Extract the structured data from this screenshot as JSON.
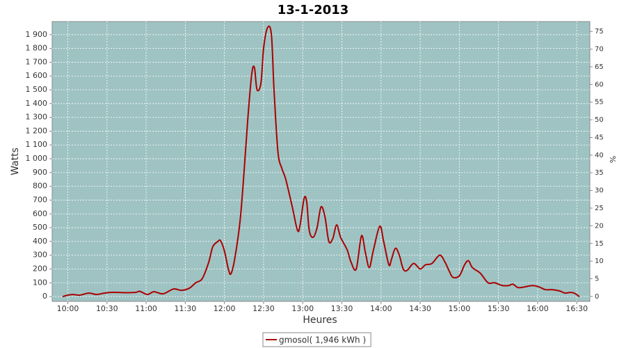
{
  "chart_data": {
    "type": "line",
    "title": "13-1-2013",
    "xlabel": "Heures",
    "ylabel": "Watts",
    "y2label": "%",
    "x": [
      "09:56",
      "10:00",
      "10:04",
      "10:09",
      "10:16",
      "10:22",
      "10:28",
      "10:33",
      "10:38",
      "10:44",
      "10:52",
      "10:55",
      "11:01",
      "11:06",
      "11:13",
      "11:21",
      "11:27",
      "11:33",
      "11:38",
      "11:43",
      "11:48",
      "11:51",
      "11:55",
      "11:57",
      "12:00",
      "12:03",
      "12:05",
      "12:08",
      "12:12",
      "12:15",
      "12:18",
      "12:21",
      "12:23",
      "12:25",
      "12:28",
      "12:30",
      "12:33",
      "12:36",
      "12:38",
      "12:41",
      "12:44",
      "12:47",
      "12:52",
      "12:56",
      "12:58",
      "13:01",
      "13:03",
      "13:05",
      "13:08",
      "13:11",
      "13:14",
      "13:17",
      "13:20",
      "13:23",
      "13:26",
      "13:29",
      "13:34",
      "13:37",
      "13:41",
      "13:45",
      "13:48",
      "13:51",
      "13:54",
      "13:59",
      "14:02",
      "14:06",
      "14:08",
      "14:11",
      "14:14",
      "14:17",
      "14:20",
      "14:25",
      "14:30",
      "14:34",
      "14:39",
      "14:45",
      "14:49",
      "14:52",
      "14:55",
      "15:00",
      "15:04",
      "15:07",
      "15:10",
      "15:16",
      "15:22",
      "15:27",
      "15:33",
      "15:38",
      "15:41",
      "15:45",
      "15:50",
      "15:56",
      "16:01",
      "16:06",
      "16:11",
      "16:17",
      "16:21",
      "16:25",
      "16:28",
      "16:32"
    ],
    "series": [
      {
        "name": "gmosol( 1,946 kWh )",
        "color": "#aa0000",
        "values": [
          0,
          10,
          15,
          10,
          25,
          15,
          25,
          30,
          30,
          28,
          30,
          38,
          15,
          35,
          20,
          55,
          45,
          60,
          100,
          130,
          250,
          360,
          400,
          405,
          330,
          200,
          165,
          280,
          550,
          900,
          1300,
          1620,
          1660,
          1500,
          1550,
          1800,
          1950,
          1900,
          1500,
          1050,
          930,
          850,
          650,
          480,
          520,
          710,
          690,
          480,
          430,
          500,
          650,
          580,
          400,
          420,
          520,
          430,
          340,
          250,
          200,
          440,
          320,
          210,
          330,
          510,
          400,
          230,
          270,
          350,
          300,
          200,
          190,
          240,
          200,
          230,
          240,
          300,
          250,
          190,
          140,
          150,
          230,
          260,
          210,
          170,
          100,
          100,
          80,
          80,
          90,
          65,
          70,
          80,
          70,
          50,
          50,
          40,
          25,
          30,
          25,
          0
        ]
      }
    ],
    "xlim": [
      "09:48",
      "16:40"
    ],
    "xticks": [
      "10:00",
      "10:30",
      "11:00",
      "11:30",
      "12:00",
      "12:30",
      "13:00",
      "13:30",
      "14:00",
      "14:30",
      "15:00",
      "15:30",
      "16:00",
      "16:30"
    ],
    "ylim": [
      -35,
      1995
    ],
    "yticks": [
      0,
      100,
      200,
      300,
      400,
      500,
      600,
      700,
      800,
      900,
      {
        "value": 1000,
        "label": "1 000"
      },
      {
        "value": 1100,
        "label": "1 100"
      },
      {
        "value": 1200,
        "label": "1 200"
      },
      {
        "value": 1300,
        "label": "1 300"
      },
      {
        "value": 1400,
        "label": "1 400"
      },
      {
        "value": 1500,
        "label": "1 500"
      },
      {
        "value": 1600,
        "label": "1 600"
      },
      {
        "value": 1700,
        "label": "1 700"
      },
      {
        "value": 1800,
        "label": "1 800"
      },
      {
        "value": 1900,
        "label": "1 900"
      }
    ],
    "y2lim": [
      -1.4,
      77.8
    ],
    "y2ticks": [
      0,
      5,
      10,
      15,
      20,
      25,
      30,
      35,
      40,
      45,
      50,
      55,
      60,
      65,
      70,
      75
    ],
    "grid": true,
    "legend": "bottom",
    "background": "#9fc3c3"
  }
}
